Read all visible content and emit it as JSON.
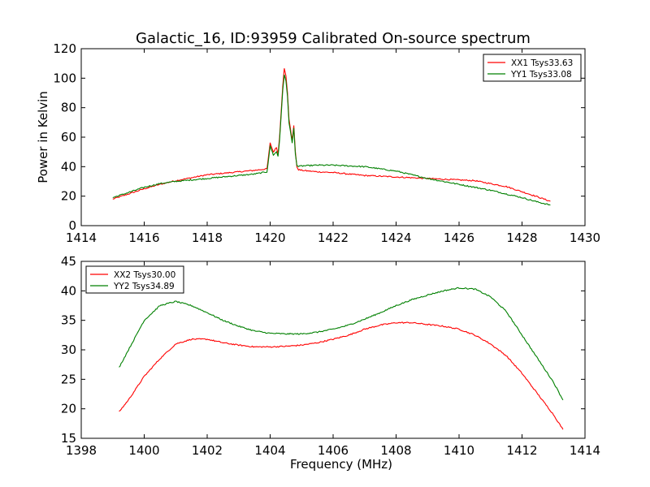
{
  "figure": {
    "title": "Galactic_16, ID:93959 Calibrated On-source spectrum"
  },
  "chart_data": [
    {
      "type": "line",
      "title": "Galactic_16, ID:93959 Calibrated On-source spectrum",
      "xlabel": "",
      "ylabel": "Power in Kelvin",
      "xlim": [
        1414,
        1430
      ],
      "ylim": [
        0,
        120
      ],
      "xticks": [
        1414,
        1416,
        1418,
        1420,
        1422,
        1424,
        1426,
        1428,
        1430
      ],
      "yticks": [
        0,
        20,
        40,
        60,
        80,
        100,
        120
      ],
      "legend_position": "top-right",
      "grid": false,
      "series": [
        {
          "name": "XX1 Tsys33.63",
          "color": "#ff0000",
          "x": [
            1415.0,
            1415.5,
            1416.0,
            1416.5,
            1417.0,
            1417.5,
            1418.0,
            1418.5,
            1419.0,
            1419.5,
            1419.9,
            1420.0,
            1420.1,
            1420.2,
            1420.25,
            1420.3,
            1420.4,
            1420.45,
            1420.5,
            1420.55,
            1420.6,
            1420.7,
            1420.75,
            1420.8,
            1420.85,
            1420.9,
            1421.0,
            1421.5,
            1422.0,
            1422.5,
            1423.0,
            1423.5,
            1424.0,
            1424.5,
            1425.0,
            1425.5,
            1426.0,
            1426.5,
            1427.0,
            1427.5,
            1428.0,
            1428.5,
            1428.9
          ],
          "y": [
            18,
            21.5,
            25,
            28,
            30.5,
            32.5,
            34.5,
            35.5,
            36.5,
            37.5,
            38.5,
            56,
            50,
            53,
            49,
            60,
            95,
            107,
            102,
            90,
            72,
            58,
            68,
            50,
            40,
            38,
            37.5,
            36.5,
            36,
            35,
            34,
            33.5,
            33,
            32.5,
            32,
            31.5,
            31,
            30.5,
            28.5,
            26.5,
            23,
            19.5,
            16.5
          ]
        },
        {
          "name": "YY1 Tsys33.08",
          "color": "#008000",
          "x": [
            1415.0,
            1415.5,
            1416.0,
            1416.5,
            1417.0,
            1417.5,
            1418.0,
            1418.5,
            1419.0,
            1419.5,
            1419.9,
            1420.0,
            1420.1,
            1420.2,
            1420.25,
            1420.3,
            1420.4,
            1420.45,
            1420.5,
            1420.55,
            1420.6,
            1420.7,
            1420.75,
            1420.8,
            1420.85,
            1420.9,
            1421.0,
            1421.5,
            1422.0,
            1422.5,
            1423.0,
            1423.5,
            1424.0,
            1424.5,
            1425.0,
            1425.5,
            1426.0,
            1426.5,
            1427.0,
            1427.5,
            1428.0,
            1428.5,
            1428.9
          ],
          "y": [
            19,
            22.5,
            26,
            28.5,
            30,
            31,
            32,
            33,
            34,
            35,
            36.5,
            54,
            48,
            50,
            47,
            58,
            92,
            102,
            98,
            88,
            70,
            56,
            66,
            49,
            41,
            40,
            40.5,
            41,
            41,
            40.5,
            40,
            38.5,
            37,
            34.5,
            32,
            30,
            28,
            26,
            24,
            21.5,
            19,
            16,
            14
          ]
        }
      ]
    },
    {
      "type": "line",
      "title": "",
      "xlabel": "Frequency (MHz)",
      "ylabel": "",
      "xlim": [
        1398,
        1414
      ],
      "ylim": [
        15,
        45
      ],
      "xticks": [
        1398,
        1400,
        1402,
        1404,
        1406,
        1408,
        1410,
        1412,
        1414
      ],
      "yticks": [
        15,
        20,
        25,
        30,
        35,
        40,
        45
      ],
      "legend_position": "top-left",
      "grid": false,
      "series": [
        {
          "name": "XX2 Tsys30.00",
          "color": "#ff0000",
          "x": [
            1399.2,
            1399.5,
            1400.0,
            1400.5,
            1401.0,
            1401.5,
            1402.0,
            1402.5,
            1403.0,
            1403.5,
            1404.0,
            1404.5,
            1405.0,
            1405.5,
            1406.0,
            1406.5,
            1407.0,
            1407.5,
            1408.0,
            1408.5,
            1409.0,
            1409.5,
            1410.0,
            1410.5,
            1411.0,
            1411.5,
            1412.0,
            1412.5,
            1413.0,
            1413.3
          ],
          "y": [
            19.5,
            21.5,
            25.5,
            28.5,
            31,
            31.8,
            31.8,
            31.2,
            30.8,
            30.5,
            30.5,
            30.6,
            30.8,
            31.2,
            31.8,
            32.5,
            33.5,
            34.2,
            34.6,
            34.6,
            34.3,
            34,
            33.5,
            32.5,
            31,
            29,
            26,
            22.5,
            19,
            16.5
          ]
        },
        {
          "name": "YY2 Tsys34.89",
          "color": "#008000",
          "x": [
            1399.2,
            1399.5,
            1400.0,
            1400.5,
            1401.0,
            1401.5,
            1402.0,
            1402.5,
            1403.0,
            1403.5,
            1404.0,
            1404.5,
            1405.0,
            1405.5,
            1406.0,
            1406.5,
            1407.0,
            1407.5,
            1408.0,
            1408.5,
            1409.0,
            1409.5,
            1410.0,
            1410.5,
            1411.0,
            1411.5,
            1412.0,
            1412.5,
            1413.0,
            1413.3
          ],
          "y": [
            27,
            30,
            35,
            37.5,
            38.2,
            37.5,
            36.3,
            35,
            34,
            33.2,
            32.8,
            32.7,
            32.7,
            33,
            33.5,
            34.2,
            35.2,
            36.3,
            37.5,
            38.5,
            39.3,
            40,
            40.5,
            40.3,
            39,
            36.5,
            32.5,
            28.5,
            24.5,
            21.5
          ]
        }
      ]
    }
  ]
}
